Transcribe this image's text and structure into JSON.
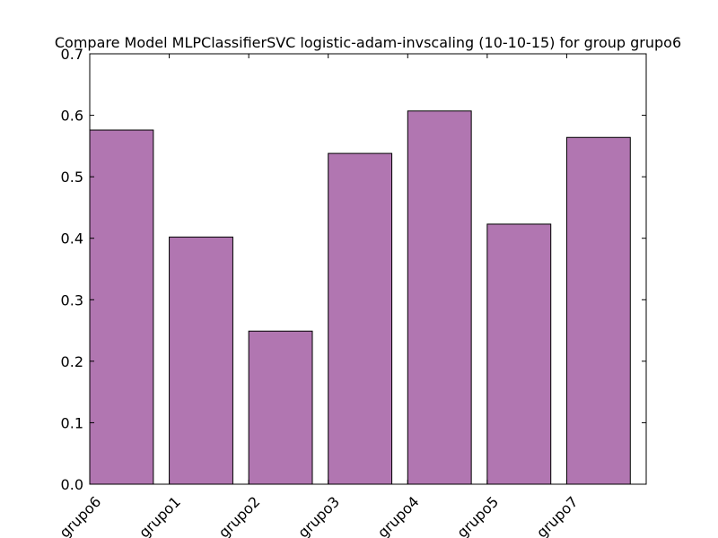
{
  "chart_data": {
    "type": "bar",
    "title": "Compare Model MLPClassifierSVC logistic-adam-invscaling (10-10-15) for group grupo6",
    "xlabel": "",
    "ylabel": "",
    "categories": [
      "grupo6",
      "grupo1",
      "grupo2",
      "grupo3",
      "grupo4",
      "grupo5",
      "grupo7"
    ],
    "values": [
      0.576,
      0.402,
      0.249,
      0.538,
      0.607,
      0.423,
      0.564
    ],
    "ylim": [
      0,
      0.7
    ],
    "yticks": [
      "0.0",
      "0.1",
      "0.2",
      "0.3",
      "0.4",
      "0.5",
      "0.6",
      "0.7"
    ],
    "grid": false,
    "bar_color": "#b176b1",
    "edge_color": "#000000"
  }
}
